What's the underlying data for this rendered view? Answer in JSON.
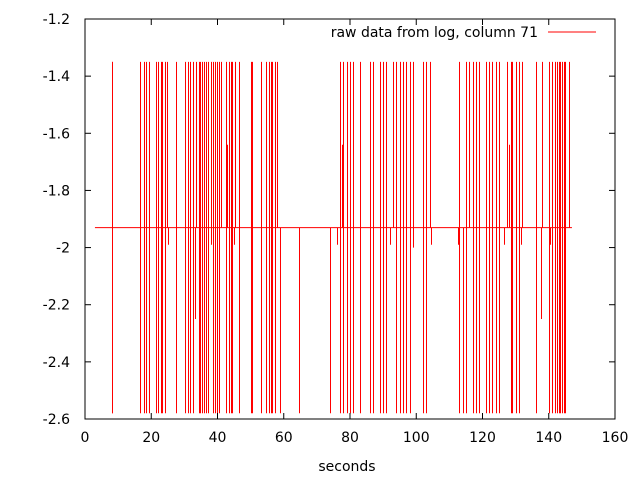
{
  "chart_data": {
    "type": "line",
    "xlabel": "seconds",
    "ylabel": "",
    "xlim": [
      0,
      160
    ],
    "ylim": [
      -2.6,
      -1.2
    ],
    "x_ticks": [
      0,
      20,
      40,
      60,
      80,
      100,
      120,
      140,
      160
    ],
    "y_ticks": [
      -2.6,
      -2.4,
      -2.2,
      -2.0,
      -1.8,
      -1.6,
      -1.4,
      -1.2
    ],
    "grid": false,
    "legend_position": "top-right",
    "series": [
      {
        "name": "raw data from log, column 71",
        "color": "#ff0000",
        "baseline": -1.93,
        "low": -2.58,
        "high": -1.35,
        "x_start": 3,
        "x_end": 147,
        "spikes_up": [
          8,
          8.3,
          16.5,
          17.8,
          18.5,
          19.2,
          21.5,
          22,
          22.8,
          23.2,
          24.3,
          24.8,
          27.5,
          30.3,
          31,
          31.8,
          32.5,
          33.5,
          34.3,
          34.8,
          35.3,
          35.8,
          36.5,
          37,
          38,
          38.5,
          39.3,
          39.8,
          40.5,
          41,
          42.5,
          43.5,
          44,
          44.5,
          45.3,
          46.5,
          50,
          50.3,
          53,
          54.5,
          55.5,
          56,
          56.5,
          57.3,
          58,
          77,
          78,
          79,
          80,
          81,
          83,
          86,
          87,
          89,
          90,
          91,
          93,
          94,
          95,
          96,
          97,
          98,
          99,
          102,
          103,
          104,
          113,
          115,
          116,
          117,
          118,
          119,
          121,
          122,
          123,
          124,
          125,
          127.5,
          128.5,
          129,
          130,
          131,
          132,
          136,
          138,
          140,
          141,
          142,
          142.5,
          143,
          143.5,
          144,
          144.5,
          145,
          146
        ],
        "spikes_down": [
          8,
          8.3,
          16.5,
          17.8,
          18.5,
          19.2,
          21.5,
          22,
          22.8,
          23.2,
          24.3,
          27.5,
          30.3,
          31,
          31.8,
          32.5,
          34.3,
          34.8,
          35.3,
          35.8,
          36.5,
          37,
          38.5,
          39.3,
          39.8,
          40.5,
          42.5,
          43.5,
          44,
          44.5,
          46.5,
          50,
          50.3,
          53,
          54.5,
          55.5,
          56,
          56.5,
          57.3,
          59,
          64.5,
          74,
          77,
          78,
          79,
          80,
          81,
          83,
          86,
          87,
          89,
          90,
          91,
          94,
          95,
          96,
          97,
          98,
          102,
          103,
          113,
          114,
          115,
          117,
          118,
          119,
          121,
          122,
          123,
          124,
          125,
          128.5,
          129,
          130,
          131,
          136,
          140,
          141,
          142,
          142.5,
          143,
          143.5,
          144,
          144.5,
          145
        ],
        "spikes_mid": [
          {
            "x": 25.2,
            "y": -1.99
          },
          {
            "x": 33.2,
            "y": -2.25
          },
          {
            "x": 38,
            "y": -1.99
          },
          {
            "x": 43,
            "y": -1.64
          },
          {
            "x": 45,
            "y": -1.99
          },
          {
            "x": 77.6,
            "y": -1.64
          },
          {
            "x": 76.2,
            "y": -1.99
          },
          {
            "x": 92,
            "y": -1.99
          },
          {
            "x": 99,
            "y": -2.0
          },
          {
            "x": 104.5,
            "y": -1.99
          },
          {
            "x": 112.5,
            "y": -1.99
          },
          {
            "x": 126.5,
            "y": -1.99
          },
          {
            "x": 128,
            "y": -1.64
          },
          {
            "x": 131.5,
            "y": -1.99
          },
          {
            "x": 137.8,
            "y": -2.25
          },
          {
            "x": 140.5,
            "y": -1.99
          }
        ]
      }
    ]
  }
}
